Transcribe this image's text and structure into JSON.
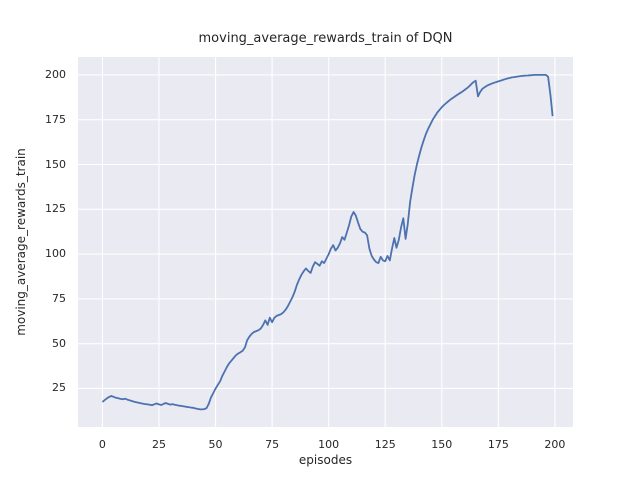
{
  "chart_data": {
    "type": "line",
    "title": "moving_average_rewards_train of DQN",
    "xlabel": "episodes",
    "ylabel": "moving_average_rewards_train",
    "xlim": [
      -10.8,
      208.0
    ],
    "ylim": [
      3.5,
      210.0
    ],
    "x_ticks": [
      0,
      25,
      50,
      75,
      100,
      125,
      150,
      175,
      200
    ],
    "y_ticks": [
      25,
      50,
      75,
      100,
      125,
      150,
      175,
      200
    ],
    "grid": true,
    "legend": "none",
    "style": {
      "line_color": "#4c72b0",
      "plot_bg": "#eaeaf2",
      "grid_color": "#ffffff",
      "text_color": "#262626",
      "figure_bg": "#ffffff"
    },
    "series": [
      {
        "name": "moving_average_rewards_train",
        "points": [
          [
            0,
            17.5
          ],
          [
            1,
            18.5
          ],
          [
            2,
            19.5
          ],
          [
            3,
            20.3
          ],
          [
            4,
            20.8
          ],
          [
            5,
            20.3
          ],
          [
            6,
            19.8
          ],
          [
            7,
            19.5
          ],
          [
            8,
            19.2
          ],
          [
            9,
            19.0
          ],
          [
            10,
            19.3
          ],
          [
            11,
            18.8
          ],
          [
            12,
            18.4
          ],
          [
            13,
            18.0
          ],
          [
            14,
            17.6
          ],
          [
            15,
            17.3
          ],
          [
            16,
            17.0
          ],
          [
            17,
            16.8
          ],
          [
            18,
            16.5
          ],
          [
            19,
            16.3
          ],
          [
            20,
            16.1
          ],
          [
            21,
            15.9
          ],
          [
            22,
            15.7
          ],
          [
            23,
            16.2
          ],
          [
            24,
            16.6
          ],
          [
            25,
            16.1
          ],
          [
            26,
            15.8
          ],
          [
            27,
            16.4
          ],
          [
            28,
            16.9
          ],
          [
            29,
            16.4
          ],
          [
            30,
            16.0
          ],
          [
            31,
            16.3
          ],
          [
            32,
            15.9
          ],
          [
            33,
            15.6
          ],
          [
            34,
            15.4
          ],
          [
            35,
            15.2
          ],
          [
            36,
            15.0
          ],
          [
            37,
            14.8
          ],
          [
            38,
            14.6
          ],
          [
            39,
            14.4
          ],
          [
            40,
            14.2
          ],
          [
            41,
            13.9
          ],
          [
            42,
            13.6
          ],
          [
            43,
            13.4
          ],
          [
            44,
            13.3
          ],
          [
            45,
            13.5
          ],
          [
            46,
            14.0
          ],
          [
            47,
            16.5
          ],
          [
            48,
            20.0
          ],
          [
            49,
            22.5
          ],
          [
            50,
            25.0
          ],
          [
            51,
            27.0
          ],
          [
            52,
            29.0
          ],
          [
            53,
            32.0
          ],
          [
            54,
            34.5
          ],
          [
            55,
            37.0
          ],
          [
            56,
            39.0
          ],
          [
            57,
            40.5
          ],
          [
            58,
            42.0
          ],
          [
            59,
            43.5
          ],
          [
            60,
            44.5
          ],
          [
            61,
            45.2
          ],
          [
            62,
            46.0
          ],
          [
            63,
            48.0
          ],
          [
            64,
            52.0
          ],
          [
            65,
            54.0
          ],
          [
            66,
            55.5
          ],
          [
            67,
            56.5
          ],
          [
            68,
            57.0
          ],
          [
            69,
            57.5
          ],
          [
            70,
            58.5
          ],
          [
            71,
            60.5
          ],
          [
            72,
            63.0
          ],
          [
            73,
            60.5
          ],
          [
            74,
            64.5
          ],
          [
            75,
            62.0
          ],
          [
            76,
            64.5
          ],
          [
            77,
            65.5
          ],
          [
            78,
            66.0
          ],
          [
            79,
            66.5
          ],
          [
            80,
            67.5
          ],
          [
            81,
            69.0
          ],
          [
            82,
            71.0
          ],
          [
            83,
            73.5
          ],
          [
            84,
            76.0
          ],
          [
            85,
            79.0
          ],
          [
            86,
            83.0
          ],
          [
            87,
            86.0
          ],
          [
            88,
            88.5
          ],
          [
            89,
            90.5
          ],
          [
            90,
            92.0
          ],
          [
            91,
            90.5
          ],
          [
            92,
            89.5
          ],
          [
            93,
            93.0
          ],
          [
            94,
            95.5
          ],
          [
            95,
            94.5
          ],
          [
            96,
            93.5
          ],
          [
            97,
            96.0
          ],
          [
            98,
            95.0
          ],
          [
            99,
            97.5
          ],
          [
            100,
            100.0
          ],
          [
            101,
            103.0
          ],
          [
            102,
            105.0
          ],
          [
            103,
            102.0
          ],
          [
            104,
            103.5
          ],
          [
            105,
            106.0
          ],
          [
            106,
            109.5
          ],
          [
            107,
            108.0
          ],
          [
            108,
            112.0
          ],
          [
            109,
            116.0
          ],
          [
            110,
            121.0
          ],
          [
            111,
            123.5
          ],
          [
            112,
            121.5
          ],
          [
            113,
            117.5
          ],
          [
            114,
            114.0
          ],
          [
            115,
            112.5
          ],
          [
            116,
            112.0
          ],
          [
            117,
            110.5
          ],
          [
            118,
            103.0
          ],
          [
            119,
            99.0
          ],
          [
            120,
            97.0
          ],
          [
            121,
            95.5
          ],
          [
            122,
            95.0
          ],
          [
            123,
            98.5
          ],
          [
            124,
            96.5
          ],
          [
            125,
            96.0
          ],
          [
            126,
            99.0
          ],
          [
            127,
            96.5
          ],
          [
            128,
            103.0
          ],
          [
            129,
            109.0
          ],
          [
            130,
            103.5
          ],
          [
            131,
            108.0
          ],
          [
            132,
            115.0
          ],
          [
            133,
            120.0
          ],
          [
            134,
            108.5
          ],
          [
            135,
            117.0
          ],
          [
            136,
            129.0
          ],
          [
            137,
            137.0
          ],
          [
            138,
            144.0
          ],
          [
            139,
            150.0
          ],
          [
            140,
            155.0
          ],
          [
            141,
            159.5
          ],
          [
            142,
            163.5
          ],
          [
            143,
            167.0
          ],
          [
            144,
            170.0
          ],
          [
            145,
            172.5
          ],
          [
            146,
            175.0
          ],
          [
            147,
            177.0
          ],
          [
            148,
            179.0
          ],
          [
            149,
            180.5
          ],
          [
            150,
            182.0
          ],
          [
            151,
            183.2
          ],
          [
            152,
            184.3
          ],
          [
            153,
            185.4
          ],
          [
            154,
            186.4
          ],
          [
            155,
            187.3
          ],
          [
            156,
            188.2
          ],
          [
            157,
            189.0
          ],
          [
            158,
            189.8
          ],
          [
            159,
            190.6
          ],
          [
            160,
            191.5
          ],
          [
            161,
            192.5
          ],
          [
            162,
            193.5
          ],
          [
            163,
            194.8
          ],
          [
            164,
            196.0
          ],
          [
            165,
            196.8
          ],
          [
            166,
            188.0
          ],
          [
            167,
            190.5
          ],
          [
            168,
            192.3
          ],
          [
            169,
            193.2
          ],
          [
            170,
            194.0
          ],
          [
            171,
            194.6
          ],
          [
            172,
            195.1
          ],
          [
            173,
            195.6
          ],
          [
            174,
            196.0
          ],
          [
            175,
            196.4
          ],
          [
            176,
            196.8
          ],
          [
            177,
            197.2
          ],
          [
            178,
            197.6
          ],
          [
            179,
            198.0
          ],
          [
            180,
            198.3
          ],
          [
            181,
            198.6
          ],
          [
            182,
            198.8
          ],
          [
            183,
            199.0
          ],
          [
            184,
            199.2
          ],
          [
            185,
            199.4
          ],
          [
            186,
            199.5
          ],
          [
            187,
            199.6
          ],
          [
            188,
            199.7
          ],
          [
            189,
            199.8
          ],
          [
            190,
            199.9
          ],
          [
            191,
            200.0
          ],
          [
            192,
            200.0
          ],
          [
            193,
            200.0
          ],
          [
            194,
            200.0
          ],
          [
            195,
            200.0
          ],
          [
            196,
            200.0
          ],
          [
            197,
            199.0
          ],
          [
            198,
            189.0
          ],
          [
            199,
            177.0
          ]
        ]
      }
    ]
  }
}
